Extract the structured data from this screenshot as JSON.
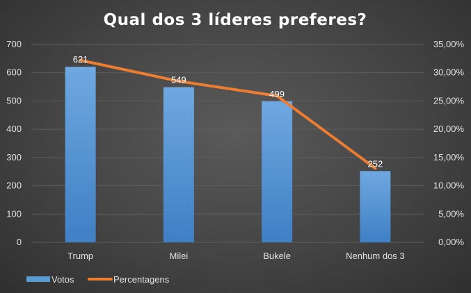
{
  "chart_data": {
    "type": "bar+line",
    "title": "Qual dos 3 líderes preferes?",
    "categories": [
      "Trump",
      "Milei",
      "Bukele",
      "Nenhum dos 3"
    ],
    "series": [
      {
        "name": "Votos",
        "type": "bar",
        "axis": "left",
        "color": "#5b9bd5",
        "values": [
          621,
          549,
          499,
          252
        ],
        "data_labels": [
          "621",
          "549",
          "499",
          "252"
        ]
      },
      {
        "name": "Percentagens",
        "type": "line",
        "axis": "right",
        "color": "#ed7d31",
        "values": [
          32.2,
          28.5,
          25.9,
          13.1
        ]
      }
    ],
    "y_left": {
      "min": 0,
      "max": 700,
      "ticks": [
        "0",
        "100",
        "200",
        "300",
        "400",
        "500",
        "600",
        "700"
      ],
      "tick_values": [
        0,
        100,
        200,
        300,
        400,
        500,
        600,
        700
      ]
    },
    "y_right": {
      "min": 0,
      "max": 35,
      "ticks": [
        "0,00%",
        "5,00%",
        "10,00%",
        "15,00%",
        "20,00%",
        "25,00%",
        "30,00%",
        "35,00%"
      ],
      "tick_values": [
        0,
        5,
        10,
        15,
        20,
        25,
        30,
        35
      ]
    },
    "grid": true,
    "legend_position": "bottom-left"
  }
}
